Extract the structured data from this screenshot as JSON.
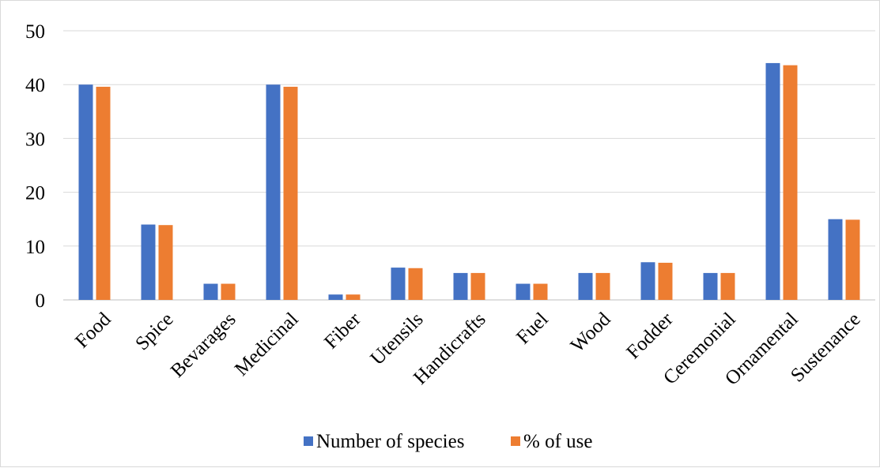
{
  "chart_data": {
    "type": "bar",
    "categories": [
      "Food",
      "Spice",
      "Bevarages",
      "Medicinal",
      "Fiber",
      "Utensils",
      "Handicrafts",
      "Fuel",
      "Wood",
      "Fodder",
      "Ceremonial",
      "Ornamental",
      "Sustenance"
    ],
    "series": [
      {
        "name": "Number of species",
        "color": "#4472c4",
        "values": [
          40,
          14,
          3,
          40,
          1,
          6,
          5,
          3,
          5,
          7,
          5,
          44,
          15
        ]
      },
      {
        "name": "% of use",
        "color": "#ed7d31",
        "values": [
          39.6,
          13.9,
          3.0,
          39.6,
          1.0,
          5.9,
          5.0,
          3.0,
          5.0,
          6.9,
          5.0,
          43.6,
          14.9
        ]
      }
    ],
    "yticks": [
      "0",
      "10",
      "20",
      "30",
      "40",
      "50"
    ],
    "ylim": [
      0,
      50
    ],
    "grid": true,
    "legend_position": "bottom",
    "title": "",
    "xlabel": "",
    "ylabel": ""
  }
}
